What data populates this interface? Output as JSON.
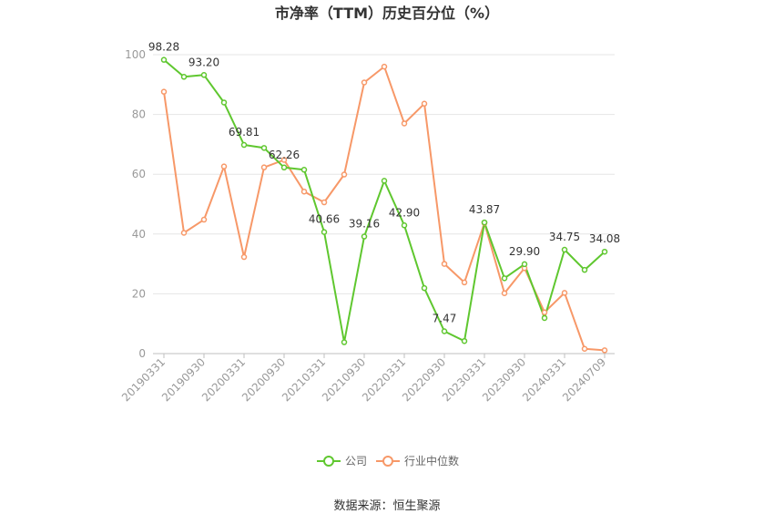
{
  "chart_data": {
    "type": "line",
    "title": "市净率（TTM）历史百分位（%）",
    "xlabel": "",
    "ylabel": "",
    "ylim": [
      0,
      100
    ],
    "yticks": [
      0,
      20,
      40,
      60,
      80,
      100
    ],
    "grid": true,
    "legend_position": "bottom",
    "x": [
      "20190331",
      "20190630",
      "20190930",
      "20191231",
      "20200331",
      "20200630",
      "20200930",
      "20201231",
      "20210331",
      "20210630",
      "20210930",
      "20211231",
      "20220331",
      "20220630",
      "20220930",
      "20221231",
      "20230331",
      "20230630",
      "20230930",
      "20231231",
      "20240331",
      "20240630",
      "20240709"
    ],
    "x_tick_labels": [
      "20190331",
      "20190930",
      "20200331",
      "20200930",
      "20210331",
      "20210930",
      "20220331",
      "20220930",
      "20230331",
      "20230930",
      "20240331",
      "20240709"
    ],
    "series": [
      {
        "name": "公司",
        "color": "#5fc72f",
        "values": [
          98.28,
          92.6,
          93.2,
          84.0,
          69.81,
          68.8,
          62.26,
          61.5,
          40.66,
          3.8,
          39.16,
          57.8,
          42.9,
          21.9,
          7.47,
          4.2,
          43.87,
          25.2,
          29.9,
          11.9,
          34.75,
          28.0,
          34.08
        ],
        "labels": {
          "0": "98.28",
          "2": "93.20",
          "4": "69.81",
          "6": "62.26",
          "8": "40.66",
          "10": "39.16",
          "12": "42.90",
          "14": "7.47",
          "16": "43.87",
          "18": "29.90",
          "20": "34.75",
          "22": "34.08"
        }
      },
      {
        "name": "行业中位数",
        "color": "#f79868",
        "values": [
          87.6,
          40.4,
          44.8,
          62.6,
          32.3,
          62.3,
          64.8,
          54.2,
          50.6,
          59.9,
          90.7,
          96.0,
          77.0,
          83.6,
          30.0,
          23.8,
          43.7,
          20.2,
          28.6,
          13.8,
          20.3,
          1.6,
          1.1
        ]
      }
    ]
  },
  "source_text": "数据来源：恒生聚源"
}
